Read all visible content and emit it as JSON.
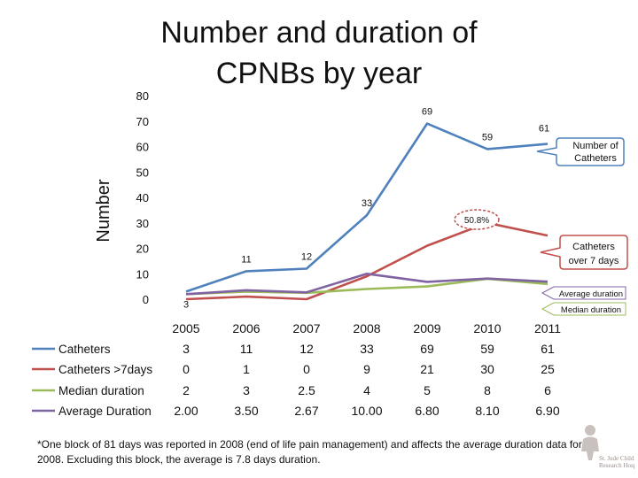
{
  "title": "Number and duration of CPNBs by year",
  "footnote": "*One block of 81 days was reported in 2008 (end of life pain management) and affects the average duration data for 2008. Excluding this block, the average is 7.8 days duration.",
  "logo": {
    "name": "St. Jude Children's Research Hospital",
    "line1": "St. Jude Children's",
    "line2": "Research Hospital"
  },
  "chart_data": {
    "type": "line",
    "ylabel": "Number",
    "ylim": [
      0,
      80
    ],
    "yticks": [
      "0",
      "10",
      "20",
      "30",
      "40",
      "50",
      "60",
      "70",
      "80"
    ],
    "categories": [
      "2005",
      "2006",
      "2007",
      "2008",
      "2009",
      "2010",
      "2011"
    ],
    "series": [
      {
        "name": "Catheters",
        "color": "#4f81bd",
        "values": [
          3,
          11,
          12,
          33,
          69,
          59,
          61
        ],
        "table": [
          "3",
          "11",
          "12",
          "33",
          "69",
          "59",
          "61"
        ]
      },
      {
        "name": "Catheters >7days",
        "color": "#c0504d",
        "values": [
          0,
          1,
          0,
          9,
          21,
          30,
          25
        ],
        "table": [
          "0",
          "1",
          "0",
          "9",
          "21",
          "30",
          "25"
        ]
      },
      {
        "name": "Median duration",
        "color": "#9bbb59",
        "values": [
          2,
          3,
          2.5,
          4,
          5,
          8,
          6
        ],
        "table": [
          "2",
          "3",
          "2.5",
          "4",
          "5",
          "8",
          "6"
        ]
      },
      {
        "name": "Average Duration",
        "color": "#8064a2",
        "values": [
          2.0,
          3.5,
          2.67,
          10.0,
          6.8,
          8.1,
          6.9
        ],
        "table": [
          "2.00",
          "3.50",
          "2.67",
          "10.00",
          "6.80",
          "8.10",
          "6.90"
        ]
      }
    ],
    "data_labels": [
      {
        "series": 0,
        "point": 0,
        "text": "3"
      },
      {
        "series": 0,
        "point": 1,
        "text": "11"
      },
      {
        "series": 0,
        "point": 2,
        "text": "12"
      },
      {
        "series": 0,
        "point": 3,
        "text": "33"
      },
      {
        "series": 0,
        "point": 4,
        "text": "69"
      },
      {
        "series": 0,
        "point": 5,
        "text": "59"
      },
      {
        "series": 0,
        "point": 6,
        "text": "61"
      }
    ],
    "annotations": {
      "catheters_callout": "Number of Catheters",
      "over7_callout": "Catheters over 7 days",
      "percent_callout": "50.8%",
      "average_label": "Average duration",
      "median_label": "Median duration"
    }
  }
}
